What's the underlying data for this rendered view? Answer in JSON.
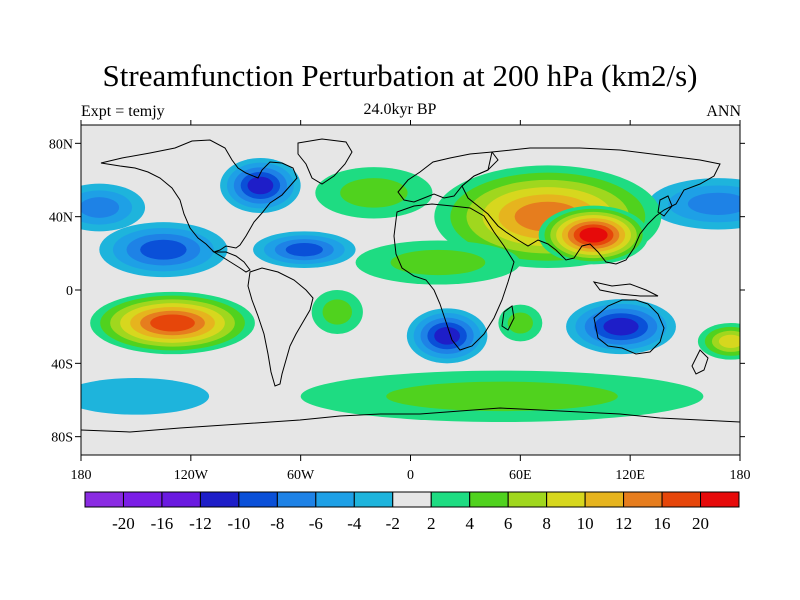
{
  "title": "Streamfunction Perturbation at 200 hPa (km2/s)",
  "left_label": "Expt = temjy",
  "center_label": "24.0kyr BP",
  "right_label": "ANN",
  "map": {
    "projection": "cylindrical-equidistant",
    "lon_range": [
      -180,
      180
    ],
    "lat_range": [
      -90,
      90
    ],
    "x_ticks": [
      {
        "value": -180,
        "label": "180"
      },
      {
        "value": -120,
        "label": "120W"
      },
      {
        "value": -60,
        "label": "60W"
      },
      {
        "value": 0,
        "label": "0"
      },
      {
        "value": 60,
        "label": "60E"
      },
      {
        "value": 120,
        "label": "120E"
      },
      {
        "value": 180,
        "label": "180"
      }
    ],
    "y_ticks": [
      {
        "value": 80,
        "label": "80N"
      },
      {
        "value": 40,
        "label": "40N"
      },
      {
        "value": 0,
        "label": "0"
      },
      {
        "value": -40,
        "label": "40S"
      },
      {
        "value": -80,
        "label": "80S"
      }
    ],
    "background_color": "#e6e6e6",
    "features": [
      {
        "name": "feature-canada-low",
        "lon": -82,
        "lat": 57,
        "rx": 22,
        "ry": 15,
        "value": -12
      },
      {
        "name": "feature-nw-pacific-low",
        "lon": 168,
        "lat": 47,
        "rx": 38,
        "ry": 14,
        "value": -8
      },
      {
        "name": "feature-ne-pacific-low",
        "lon": -170,
        "lat": 45,
        "rx": 25,
        "ry": 13,
        "value": -8
      },
      {
        "name": "feature-east-pacific-low",
        "lon": -135,
        "lat": 22,
        "rx": 35,
        "ry": 15,
        "value": -10
      },
      {
        "name": "feature-atlantic-low",
        "lon": -58,
        "lat": 22,
        "rx": 28,
        "ry": 10,
        "value": -10
      },
      {
        "name": "feature-north-atlantic-high",
        "lon": -20,
        "lat": 53,
        "rx": 32,
        "ry": 14,
        "value": 4
      },
      {
        "name": "feature-eurasia-high",
        "lon": 75,
        "lat": 40,
        "rx": 62,
        "ry": 28,
        "value": 12
      },
      {
        "name": "feature-tibet-high",
        "lon": 100,
        "lat": 30,
        "rx": 30,
        "ry": 16,
        "value": 20
      },
      {
        "name": "feature-north-africa-high",
        "lon": 15,
        "lat": 15,
        "rx": 45,
        "ry": 12,
        "value": 4
      },
      {
        "name": "feature-south-pacific-high",
        "lon": -130,
        "lat": -18,
        "rx": 45,
        "ry": 17,
        "value": 16
      },
      {
        "name": "feature-south-america-high",
        "lon": -40,
        "lat": -12,
        "rx": 14,
        "ry": 12,
        "value": 4
      },
      {
        "name": "feature-south-atlantic-low",
        "lon": 20,
        "lat": -25,
        "rx": 22,
        "ry": 15,
        "value": -12
      },
      {
        "name": "feature-indian-ocean-low",
        "lon": 115,
        "lat": -20,
        "rx": 30,
        "ry": 15,
        "value": -12
      },
      {
        "name": "feature-indian-ocean-high",
        "lon": 60,
        "lat": -18,
        "rx": 12,
        "ry": 10,
        "value": 4
      },
      {
        "name": "feature-sw-pacific-high",
        "lon": 175,
        "lat": -28,
        "rx": 18,
        "ry": 10,
        "value": 8
      },
      {
        "name": "feature-southern-pacific-low",
        "lon": -150,
        "lat": -58,
        "rx": 40,
        "ry": 10,
        "value": -4
      },
      {
        "name": "feature-southern-ocean-high",
        "lon": 50,
        "lat": -58,
        "rx": 110,
        "ry": 14,
        "value": 4
      }
    ]
  },
  "colorbar": {
    "colors": [
      "#8a2be2",
      "#7b1ee6",
      "#6a1ae0",
      "#1e1ec8",
      "#0a50d8",
      "#1e82e6",
      "#1ea0e6",
      "#1eb4dc",
      "#e6e6e6",
      "#1edc82",
      "#50d21e",
      "#a0d71e",
      "#d7d71e",
      "#e6b41e",
      "#e67d1e",
      "#e6460a",
      "#e60a0a"
    ],
    "labels": [
      "-20",
      "-16",
      "-12",
      "-10",
      "-8",
      "-6",
      "-4",
      "-2",
      "2",
      "4",
      "6",
      "8",
      "10",
      "12",
      "16",
      "20"
    ],
    "levels": [
      -20,
      -16,
      -12,
      -10,
      -8,
      -6,
      -4,
      -2,
      2,
      4,
      6,
      8,
      10,
      12,
      16,
      20
    ]
  }
}
